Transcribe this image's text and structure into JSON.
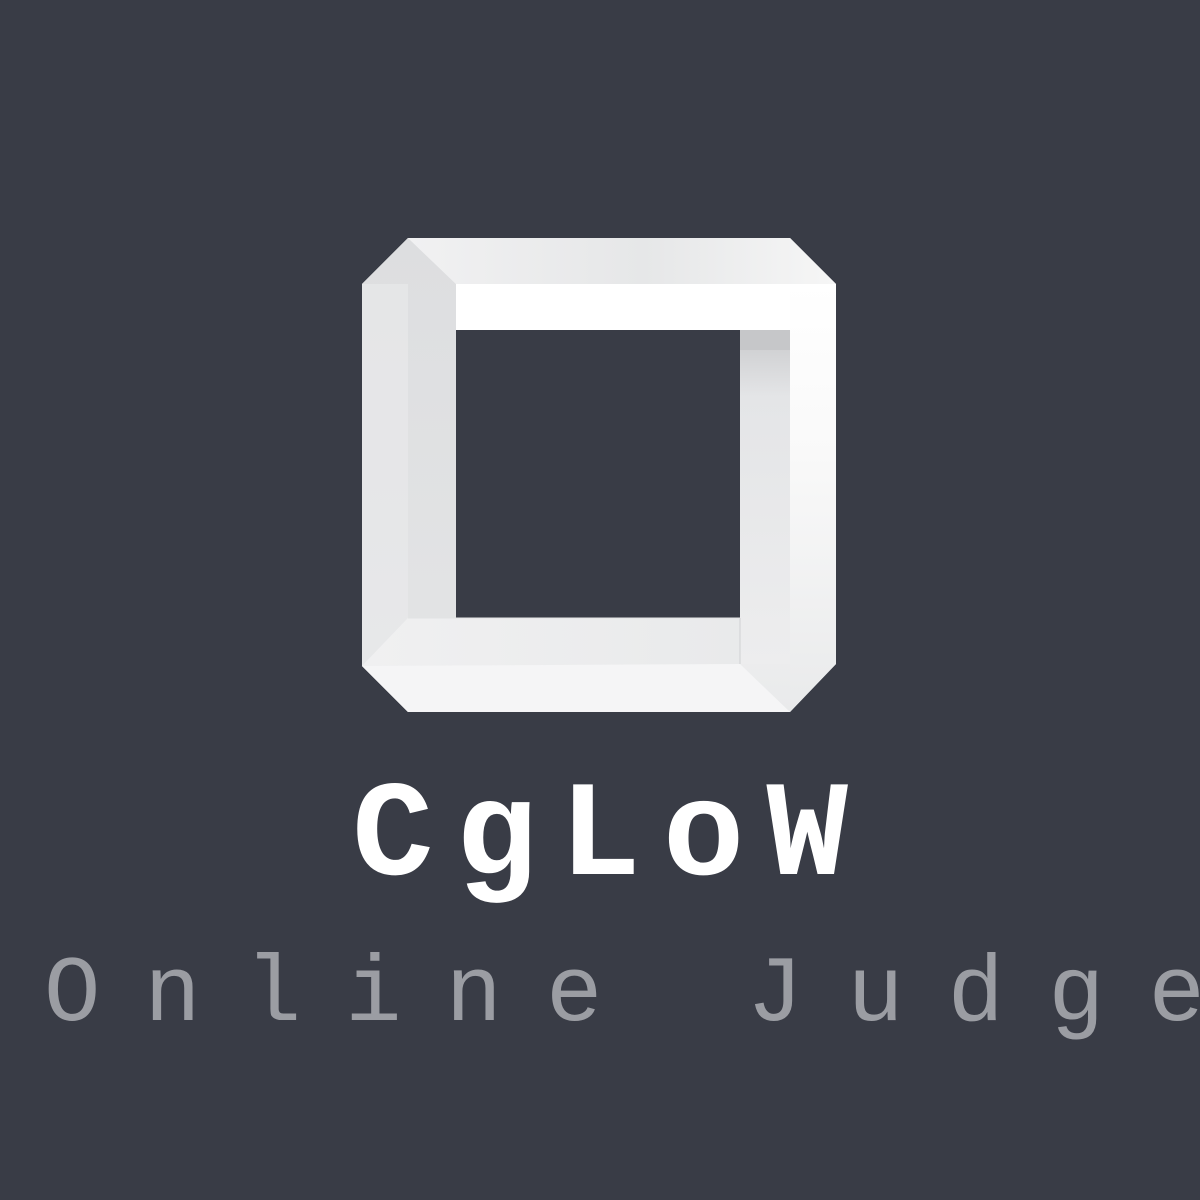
{
  "brand": {
    "name": "CgLoW",
    "tagline": "Online Judge"
  },
  "colors": {
    "background": "#393c46",
    "logo_face": "#f7f7f7",
    "logo_shade": "#d7d8da",
    "brand_text": "#ffffff",
    "tagline_text": "#9b9da3"
  },
  "icons": {
    "logo": "impossible-square-icon"
  }
}
